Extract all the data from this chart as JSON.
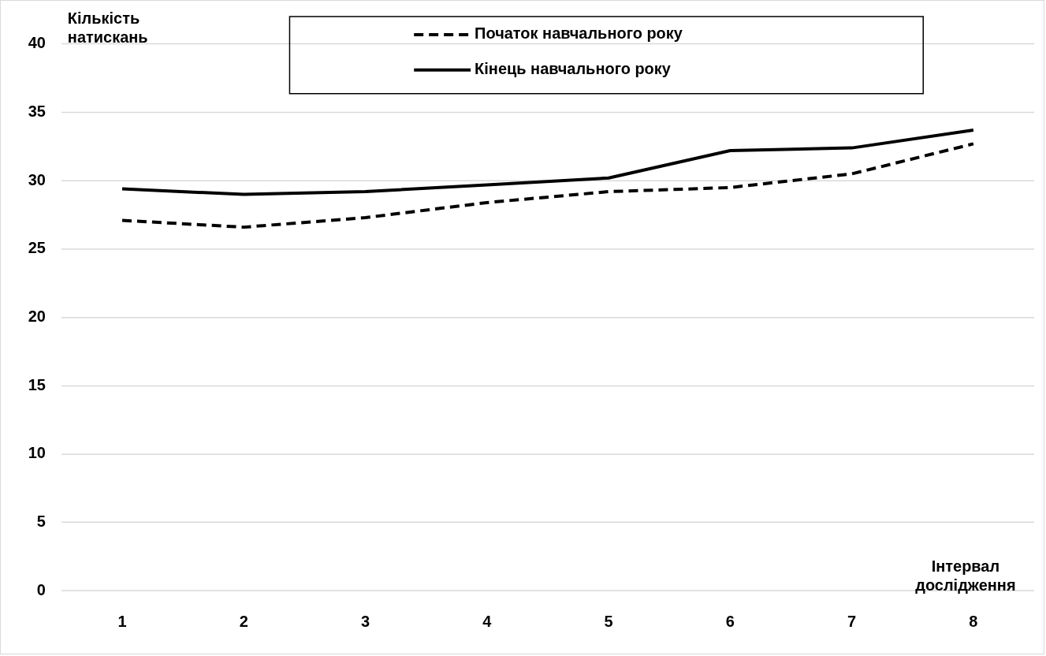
{
  "chart_data": {
    "type": "line",
    "xlabel": "Інтервал дослідження",
    "ylabel": "Кількість натискань",
    "categories": [
      "1",
      "2",
      "3",
      "4",
      "5",
      "6",
      "7",
      "8"
    ],
    "series": [
      {
        "name": "Початок навчального року",
        "color": "#000000",
        "line_style": "dashed",
        "values": [
          27.1,
          26.6,
          27.3,
          28.4,
          29.2,
          29.5,
          30.5,
          32.7
        ]
      },
      {
        "name": "Кінець навчального року",
        "color": "#000000",
        "line_style": "solid",
        "values": [
          29.4,
          29.0,
          29.2,
          29.7,
          30.2,
          32.2,
          32.4,
          33.7
        ]
      }
    ],
    "ylim": [
      0,
      40
    ],
    "yticks": [
      0,
      5,
      10,
      15,
      20,
      25,
      30,
      35,
      40
    ],
    "grid": "y",
    "legend": "top",
    "marker": "none"
  }
}
